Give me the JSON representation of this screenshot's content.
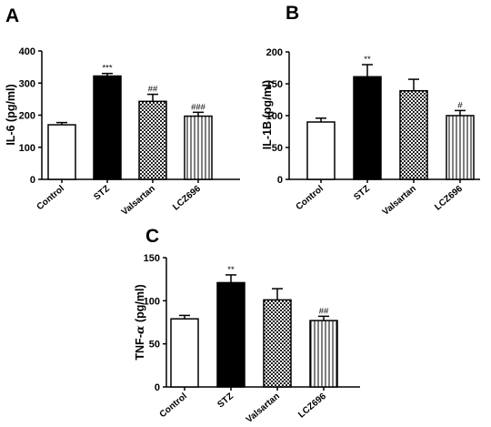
{
  "chart_data": [
    {
      "panel": "A",
      "type": "bar",
      "categories": [
        "Control",
        "STZ",
        "Valsartan",
        "LCZ696"
      ],
      "values": [
        170,
        322,
        243,
        197
      ],
      "errors": [
        7,
        8,
        22,
        12
      ],
      "significance": [
        "",
        "***",
        "##",
        "###"
      ],
      "patterns": [
        "white",
        "black",
        "checker",
        "vstripe"
      ],
      "ylabel": "IL-6 (pg/ml)",
      "xlabel": "",
      "ylim": [
        0,
        400
      ],
      "yticks": [
        0,
        100,
        200,
        300,
        400
      ],
      "grid": false
    },
    {
      "panel": "B",
      "type": "bar",
      "categories": [
        "Control",
        "STZ",
        "Valsartan",
        "LCZ696"
      ],
      "values": [
        90,
        161,
        139,
        100
      ],
      "errors": [
        6,
        19,
        18,
        8
      ],
      "significance": [
        "",
        "**",
        "",
        "#"
      ],
      "patterns": [
        "white",
        "black",
        "checker",
        "vstripe"
      ],
      "ylabel": "IL-1B (pg/ml)",
      "xlabel": "",
      "ylim": [
        0,
        200
      ],
      "yticks": [
        0,
        50,
        100,
        150,
        200
      ],
      "grid": false
    },
    {
      "panel": "C",
      "type": "bar",
      "categories": [
        "Control",
        "STZ",
        "Valsartan",
        "LCZ696"
      ],
      "values": [
        79,
        121,
        101,
        77
      ],
      "errors": [
        4,
        9,
        13,
        5
      ],
      "significance": [
        "",
        "**",
        "",
        "##"
      ],
      "patterns": [
        "white",
        "black",
        "checker",
        "vstripe"
      ],
      "ylabel_prefix": "TNF-",
      "ylabel_symbol": "α",
      "ylabel_suffix": " (pg/ml)",
      "xlabel": "",
      "ylim": [
        0,
        150
      ],
      "yticks": [
        0,
        50,
        100,
        150
      ],
      "grid": false
    }
  ],
  "colors": {
    "axis": "#000000",
    "bar_outline": "#000000",
    "bar_black": "#000000",
    "bar_white": "#ffffff"
  }
}
